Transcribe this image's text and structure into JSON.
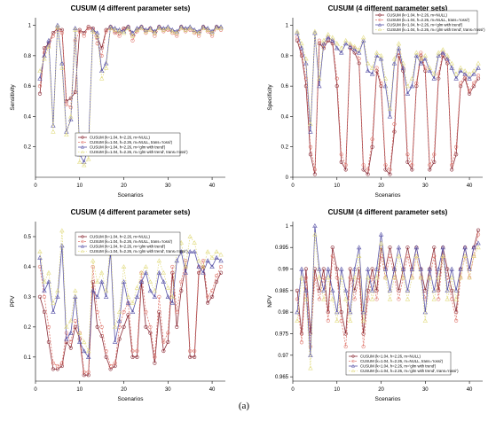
{
  "figure": {
    "caption": "(a)",
    "colors": {
      "s1": "#8b2c37",
      "s2": "#e07a70",
      "s3": "#5a55a8",
      "s4": "#e3dd86"
    }
  },
  "legend_labels": [
    "CUSUM (k=1.04, h=2.26, m=NULL)",
    "CUSUM (k=1.04, h=2.26, m=NULL, trans='rossi')",
    "CUSUM (k=1.04, h=2.26, m='glm with trend')",
    "CUSUM (k=1.04, h=2.26, m='glm with trend', trans='rossi')"
  ],
  "chart_data": [
    {
      "type": "line",
      "title": "CUSUM (4 different parameter sets)",
      "xlabel": "Scenarios",
      "ylabel": "Sensitivity",
      "xlim": [
        0,
        43
      ],
      "ylim": [
        0.0,
        1.05
      ],
      "xticks": [
        0,
        10,
        20,
        30,
        40
      ],
      "yticks": [
        0.2,
        0.4,
        0.6,
        0.8,
        1.0
      ],
      "grid": false,
      "legend": "center-right",
      "x": [
        1,
        2,
        3,
        4,
        5,
        6,
        7,
        8,
        9,
        10,
        11,
        12,
        13,
        14,
        15,
        16,
        17,
        18,
        19,
        20,
        21,
        22,
        23,
        24,
        25,
        26,
        27,
        28,
        29,
        30,
        31,
        32,
        33,
        34,
        35,
        36,
        37,
        38,
        39,
        40,
        41,
        42
      ],
      "series": [
        {
          "name": "CUSUM (k=1.04, h=2.26, m=NULL)",
          "values": [
            0.55,
            0.85,
            0.88,
            0.95,
            0.98,
            0.97,
            0.5,
            0.52,
            0.56,
            0.97,
            0.95,
            0.99,
            0.98,
            0.92,
            0.85,
            0.97,
            0.99,
            0.96,
            0.95,
            0.98,
            0.99,
            0.93,
            0.97,
            0.99,
            0.96,
            0.98,
            0.95,
            0.99,
            0.97,
            0.98,
            0.96,
            0.95,
            0.99,
            0.97,
            0.98,
            0.96,
            0.95,
            0.99,
            0.97,
            0.95,
            0.99,
            0.98
          ]
        },
        {
          "name": "CUSUM (k=1.04, h=2.26, m=NULL, trans='rossi')",
          "values": [
            0.6,
            0.82,
            0.86,
            0.93,
            0.97,
            0.95,
            0.48,
            0.46,
            0.9,
            0.96,
            0.93,
            0.98,
            0.97,
            0.88,
            0.8,
            0.96,
            0.98,
            0.95,
            0.93,
            0.97,
            0.98,
            0.9,
            0.96,
            0.98,
            0.95,
            0.97,
            0.93,
            0.98,
            0.96,
            0.97,
            0.95,
            0.93,
            0.98,
            0.96,
            0.97,
            0.95,
            0.93,
            0.98,
            0.96,
            0.93,
            0.98,
            0.97
          ]
        },
        {
          "name": "CUSUM (k=1.04, h=2.26, m='glm with trend')",
          "values": [
            0.65,
            0.8,
            0.9,
            0.34,
            1.0,
            0.75,
            0.3,
            0.38,
            0.98,
            0.15,
            0.1,
            0.2,
            0.97,
            0.95,
            0.7,
            0.75,
            0.99,
            0.98,
            0.97,
            0.96,
            0.99,
            0.95,
            0.98,
            0.99,
            0.97,
            0.98,
            0.96,
            0.99,
            0.98,
            0.99,
            0.97,
            0.96,
            0.99,
            0.98,
            0.99,
            0.97,
            0.96,
            0.99,
            0.98,
            0.96,
            0.99,
            0.99
          ]
        },
        {
          "name": "CUSUM (k=1.04, h=2.26, m='glm with trend', trans='rossi')",
          "values": [
            0.7,
            0.78,
            0.86,
            0.3,
            0.99,
            0.72,
            0.28,
            0.4,
            0.97,
            0.1,
            0.08,
            0.12,
            0.96,
            0.93,
            0.65,
            0.72,
            0.98,
            0.97,
            0.96,
            0.95,
            0.98,
            0.93,
            0.97,
            0.98,
            0.96,
            0.97,
            0.95,
            0.98,
            0.97,
            0.98,
            0.96,
            0.95,
            0.98,
            0.97,
            0.98,
            0.96,
            0.95,
            0.98,
            0.97,
            0.95,
            0.98,
            0.98
          ]
        }
      ]
    },
    {
      "type": "line",
      "title": "CUSUM (4 different parameter sets)",
      "xlabel": "Scenarios",
      "ylabel": "Specificity",
      "xlim": [
        0,
        43
      ],
      "ylim": [
        0.0,
        1.05
      ],
      "xticks": [
        0,
        10,
        20,
        30,
        40
      ],
      "yticks": [
        0.0,
        0.2,
        0.4,
        0.6,
        0.8,
        1.0
      ],
      "grid": false,
      "legend": "top-right",
      "x": [
        1,
        2,
        3,
        4,
        5,
        6,
        7,
        8,
        9,
        10,
        11,
        12,
        13,
        14,
        15,
        16,
        17,
        18,
        19,
        20,
        21,
        22,
        23,
        24,
        25,
        26,
        27,
        28,
        29,
        30,
        31,
        32,
        33,
        34,
        35,
        36,
        37,
        38,
        39,
        40,
        41,
        42
      ],
      "series": [
        {
          "name": "CUSUM (k=1.04, h=2.26, m=NULL)",
          "values": [
            0.9,
            0.8,
            0.6,
            0.15,
            0.02,
            0.88,
            0.85,
            0.9,
            0.88,
            0.6,
            0.1,
            0.05,
            0.85,
            0.82,
            0.75,
            0.05,
            0.02,
            0.2,
            0.7,
            0.6,
            0.05,
            0.02,
            0.3,
            0.8,
            0.7,
            0.1,
            0.05,
            0.6,
            0.8,
            0.7,
            0.05,
            0.1,
            0.65,
            0.8,
            0.75,
            0.05,
            0.15,
            0.6,
            0.65,
            0.55,
            0.6,
            0.65
          ]
        },
        {
          "name": "CUSUM (k=1.04, h=2.26, m=NULL, trans='rossi')",
          "values": [
            0.92,
            0.82,
            0.65,
            0.2,
            0.05,
            0.9,
            0.87,
            0.92,
            0.9,
            0.65,
            0.15,
            0.08,
            0.87,
            0.85,
            0.78,
            0.08,
            0.05,
            0.25,
            0.72,
            0.62,
            0.08,
            0.05,
            0.35,
            0.82,
            0.72,
            0.15,
            0.08,
            0.62,
            0.82,
            0.72,
            0.08,
            0.15,
            0.68,
            0.82,
            0.77,
            0.08,
            0.2,
            0.62,
            0.67,
            0.57,
            0.62,
            0.67
          ]
        },
        {
          "name": "CUSUM (k=1.04, h=2.26, m='glm with trend')",
          "values": [
            0.95,
            0.85,
            0.75,
            0.3,
            0.95,
            0.6,
            0.88,
            0.92,
            0.9,
            0.85,
            0.82,
            0.88,
            0.86,
            0.84,
            0.82,
            0.9,
            0.7,
            0.68,
            0.8,
            0.78,
            0.6,
            0.4,
            0.75,
            0.85,
            0.72,
            0.55,
            0.6,
            0.8,
            0.75,
            0.78,
            0.7,
            0.65,
            0.8,
            0.82,
            0.78,
            0.72,
            0.65,
            0.7,
            0.68,
            0.65,
            0.68,
            0.72
          ]
        },
        {
          "name": "CUSUM (k=1.04, h=2.26, m='glm with trend', trans='rossi')",
          "values": [
            0.96,
            0.88,
            0.78,
            0.35,
            0.96,
            0.65,
            0.9,
            0.94,
            0.92,
            0.88,
            0.85,
            0.9,
            0.88,
            0.86,
            0.84,
            0.92,
            0.75,
            0.72,
            0.82,
            0.8,
            0.65,
            0.45,
            0.78,
            0.88,
            0.75,
            0.6,
            0.65,
            0.82,
            0.78,
            0.8,
            0.72,
            0.68,
            0.82,
            0.84,
            0.8,
            0.75,
            0.68,
            0.72,
            0.7,
            0.68,
            0.7,
            0.75
          ]
        }
      ]
    },
    {
      "type": "line",
      "title": "CUSUM (4 different parameter sets)",
      "xlabel": "Scenarios",
      "ylabel": "PPV",
      "xlim": [
        0,
        43
      ],
      "ylim": [
        0.02,
        0.55
      ],
      "xticks": [
        0,
        10,
        20,
        30,
        40
      ],
      "yticks": [
        0.1,
        0.2,
        0.3,
        0.4,
        0.5
      ],
      "grid": false,
      "legend": "top-left",
      "x": [
        1,
        2,
        3,
        4,
        5,
        6,
        7,
        8,
        9,
        10,
        11,
        12,
        13,
        14,
        15,
        16,
        17,
        18,
        19,
        20,
        21,
        22,
        23,
        24,
        25,
        26,
        27,
        28,
        29,
        30,
        31,
        32,
        33,
        34,
        35,
        36,
        37,
        38,
        39,
        40,
        41,
        42
      ],
      "series": [
        {
          "name": "CUSUM (k=1.04, h=2.26, m=NULL)",
          "values": [
            0.3,
            0.25,
            0.15,
            0.06,
            0.06,
            0.07,
            0.15,
            0.13,
            0.2,
            0.16,
            0.04,
            0.04,
            0.35,
            0.2,
            0.17,
            0.1,
            0.06,
            0.07,
            0.16,
            0.2,
            0.24,
            0.1,
            0.1,
            0.35,
            0.2,
            0.18,
            0.08,
            0.25,
            0.12,
            0.15,
            0.38,
            0.2,
            0.32,
            0.4,
            0.1,
            0.1,
            0.38,
            0.4,
            0.28,
            0.3,
            0.35,
            0.38
          ]
        },
        {
          "name": "CUSUM (k=1.04, h=2.26, m=NULL, trans='rossi')",
          "values": [
            0.4,
            0.3,
            0.2,
            0.08,
            0.07,
            0.08,
            0.18,
            0.15,
            0.22,
            0.18,
            0.05,
            0.05,
            0.4,
            0.25,
            0.2,
            0.12,
            0.07,
            0.08,
            0.2,
            0.25,
            0.28,
            0.12,
            0.12,
            0.38,
            0.25,
            0.2,
            0.1,
            0.3,
            0.15,
            0.18,
            0.4,
            0.25,
            0.35,
            0.42,
            0.12,
            0.12,
            0.4,
            0.42,
            0.3,
            0.32,
            0.37,
            0.4
          ]
        },
        {
          "name": "CUSUM (k=1.04, h=2.26, m='glm with trend')",
          "values": [
            0.43,
            0.32,
            0.35,
            0.25,
            0.3,
            0.47,
            0.16,
            0.18,
            0.3,
            0.15,
            0.12,
            0.1,
            0.32,
            0.3,
            0.35,
            0.3,
            0.45,
            0.15,
            0.22,
            0.35,
            0.28,
            0.25,
            0.3,
            0.35,
            0.38,
            0.32,
            0.3,
            0.38,
            0.35,
            0.3,
            0.28,
            0.42,
            0.45,
            0.38,
            0.45,
            0.45,
            0.4,
            0.38,
            0.42,
            0.4,
            0.43,
            0.42
          ]
        },
        {
          "name": "CUSUM (k=1.04, h=2.26, m='glm with trend', trans='rossi')",
          "values": [
            0.45,
            0.35,
            0.38,
            0.28,
            0.32,
            0.52,
            0.2,
            0.22,
            0.32,
            0.18,
            0.15,
            0.12,
            0.42,
            0.35,
            0.38,
            0.32,
            0.48,
            0.2,
            0.25,
            0.4,
            0.3,
            0.28,
            0.33,
            0.38,
            0.4,
            0.35,
            0.32,
            0.42,
            0.38,
            0.33,
            0.3,
            0.45,
            0.48,
            0.4,
            0.5,
            0.48,
            0.42,
            0.4,
            0.45,
            0.43,
            0.45,
            0.44
          ]
        }
      ]
    },
    {
      "type": "line",
      "title": "CUSUM (4 different parameter sets)",
      "xlabel": "Scenarios",
      "ylabel": "NPV",
      "xlim": [
        0,
        43
      ],
      "ylim": [
        0.964,
        1.001
      ],
      "xticks": [
        0,
        10,
        20,
        30,
        40
      ],
      "yticks": [
        0.965,
        0.97,
        0.975,
        0.98,
        0.985,
        0.99,
        0.995,
        1.0
      ],
      "grid": false,
      "legend": "bottom-right",
      "x": [
        1,
        2,
        3,
        4,
        5,
        6,
        7,
        8,
        9,
        10,
        11,
        12,
        13,
        14,
        15,
        16,
        17,
        18,
        19,
        20,
        21,
        22,
        23,
        24,
        25,
        26,
        27,
        28,
        29,
        30,
        31,
        32,
        33,
        34,
        35,
        36,
        37,
        38,
        39,
        40,
        41,
        42
      ],
      "series": [
        {
          "name": "CUSUM (k=1.04, h=2.26, m=NULL)",
          "values": [
            0.985,
            0.975,
            0.99,
            0.975,
            0.99,
            0.985,
            0.99,
            0.98,
            0.995,
            0.99,
            0.98,
            0.975,
            0.99,
            0.985,
            0.99,
            0.975,
            0.985,
            0.99,
            0.985,
            0.995,
            0.99,
            0.995,
            0.99,
            0.985,
            0.99,
            0.995,
            0.99,
            0.995,
            0.99,
            0.985,
            0.99,
            0.995,
            0.985,
            0.995,
            0.99,
            0.985,
            0.98,
            0.99,
            0.995,
            0.99,
            0.995,
            0.999
          ]
        },
        {
          "name": "CUSUM (k=1.04, h=2.26, m=NULL, trans='rossi')",
          "values": [
            0.983,
            0.973,
            0.988,
            0.972,
            0.988,
            0.983,
            0.988,
            0.978,
            0.993,
            0.988,
            0.978,
            0.972,
            0.988,
            0.983,
            0.988,
            0.972,
            0.983,
            0.988,
            0.983,
            0.993,
            0.988,
            0.993,
            0.988,
            0.983,
            0.988,
            0.993,
            0.988,
            0.993,
            0.988,
            0.983,
            0.988,
            0.993,
            0.983,
            0.993,
            0.988,
            0.983,
            0.978,
            0.988,
            0.993,
            0.988,
            0.993,
            0.998
          ]
        },
        {
          "name": "CUSUM (k=1.04, h=2.26, m='glm with trend')",
          "values": [
            0.98,
            0.99,
            0.985,
            0.97,
            1.0,
            0.99,
            0.985,
            0.99,
            0.985,
            0.98,
            0.99,
            0.985,
            0.98,
            0.99,
            0.995,
            0.98,
            0.99,
            0.985,
            0.99,
            0.998,
            0.99,
            0.985,
            0.99,
            0.995,
            0.99,
            0.985,
            0.99,
            0.995,
            0.99,
            0.98,
            0.99,
            0.985,
            0.99,
            0.995,
            0.985,
            0.99,
            0.985,
            0.99,
            0.995,
            0.99,
            0.995,
            0.996
          ]
        },
        {
          "name": "CUSUM (k=1.04, h=2.26, m='glm with trend', trans='rossi')",
          "values": [
            0.978,
            0.988,
            0.983,
            0.967,
            0.998,
            0.988,
            0.983,
            0.988,
            0.983,
            0.978,
            0.988,
            0.983,
            0.978,
            0.988,
            0.993,
            0.978,
            0.988,
            0.983,
            0.988,
            0.996,
            0.988,
            0.983,
            0.988,
            0.993,
            0.988,
            0.983,
            0.988,
            0.993,
            0.988,
            0.978,
            0.988,
            0.983,
            0.988,
            0.993,
            0.983,
            0.988,
            0.983,
            0.988,
            0.993,
            0.988,
            0.993,
            0.995
          ]
        }
      ]
    }
  ]
}
